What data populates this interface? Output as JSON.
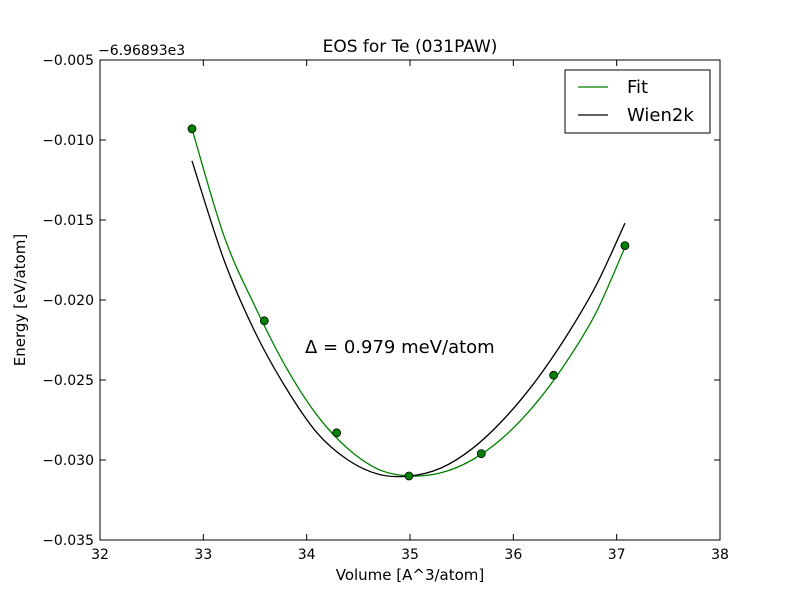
{
  "chart_data": {
    "type": "line",
    "title": "EOS for Te (031PAW)",
    "xlabel": "Volume [A^3/atom]",
    "ylabel": "Energy [eV/atom]",
    "offset_text": "−6.96893e3",
    "annotation": "Δ = 0.979 meV/atom",
    "xlim": [
      32,
      38
    ],
    "ylim": [
      -0.035,
      -0.005
    ],
    "xticks": [
      32,
      33,
      34,
      35,
      36,
      37,
      38
    ],
    "xtick_labels": [
      "32",
      "33",
      "34",
      "35",
      "36",
      "37",
      "38"
    ],
    "yticks": [
      -0.035,
      -0.03,
      -0.025,
      -0.02,
      -0.015,
      -0.01,
      -0.005
    ],
    "ytick_labels": [
      "−0.035",
      "−0.030",
      "−0.025",
      "−0.020",
      "−0.015",
      "−0.010",
      "−0.005"
    ],
    "grid": false,
    "legend_position": "top-right",
    "series": [
      {
        "name": "Fit",
        "kind": "line",
        "color": "#008000",
        "x": [
          32.89,
          33.2,
          33.5,
          33.8,
          34.1,
          34.4,
          34.7,
          35.0,
          35.3,
          35.6,
          35.9,
          36.2,
          36.5,
          36.8,
          37.08
        ],
        "y": [
          -0.0093,
          -0.016,
          -0.0204,
          -0.0242,
          -0.0272,
          -0.0293,
          -0.0306,
          -0.031,
          -0.0308,
          -0.03,
          -0.0286,
          -0.0266,
          -0.024,
          -0.0208,
          -0.0167
        ]
      },
      {
        "name": "Wien2k",
        "kind": "line",
        "color": "#000000",
        "x": [
          32.89,
          33.2,
          33.5,
          33.8,
          34.1,
          34.4,
          34.7,
          35.0,
          35.3,
          35.6,
          35.9,
          36.2,
          36.5,
          36.8,
          37.08
        ],
        "y": [
          -0.0113,
          -0.0175,
          -0.022,
          -0.0255,
          -0.0283,
          -0.03,
          -0.0309,
          -0.031,
          -0.0305,
          -0.0293,
          -0.0275,
          -0.0252,
          -0.0224,
          -0.0191,
          -0.0152
        ]
      },
      {
        "kind": "points",
        "color": "#008000",
        "x": [
          32.89,
          33.59,
          34.29,
          34.99,
          35.69,
          36.39,
          37.08
        ],
        "y": [
          -0.0093,
          -0.0213,
          -0.0283,
          -0.031,
          -0.0296,
          -0.0247,
          -0.0166
        ]
      }
    ]
  }
}
